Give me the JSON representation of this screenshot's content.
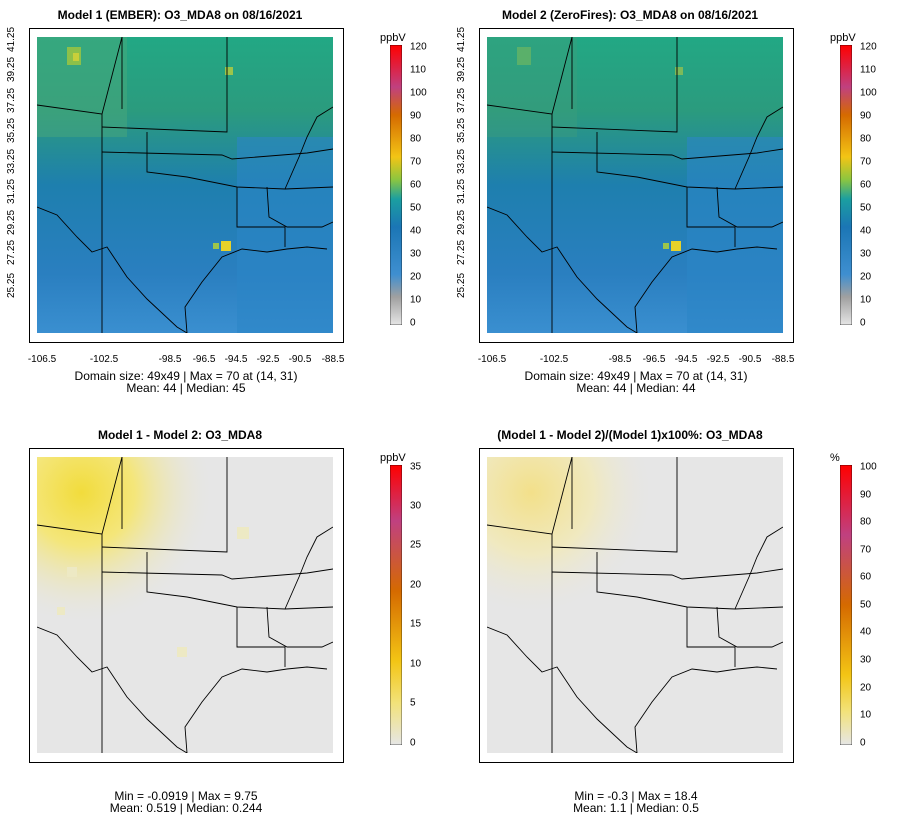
{
  "panels": [
    {
      "id": "p1",
      "title": "Model 1 (EMBER): O3_MDA8 on 08/16/2021",
      "caption_line1": "Domain size: 49x49 | Max = 70 at (14, 31)",
      "caption_line2": "Mean: 44 |  Median: 45",
      "unit": "ppbV",
      "colorbar_labels": [
        "120",
        "110",
        "100",
        "90",
        "80",
        "70",
        "60",
        "50",
        "40",
        "30",
        "20",
        "10",
        "0"
      ],
      "x_ticks": [
        "-106.5",
        "-102.5",
        "-98.5",
        "-96.5",
        "-94.5",
        "-92.5",
        "-90.5",
        "-88.5"
      ],
      "y_ticks": [
        "41.25",
        "39.25",
        "37.25",
        "35.25",
        "33.25",
        "31.25",
        "29.25",
        "27.25",
        "25.25"
      ]
    },
    {
      "id": "p2",
      "title": "Model 2 (ZeroFires): O3_MDA8 on 08/16/2021",
      "caption_line1": "Domain size: 49x49 | Max = 70 at (14, 31)",
      "caption_line2": "Mean: 44 |  Median: 44",
      "unit": "ppbV",
      "colorbar_labels": [
        "120",
        "110",
        "100",
        "90",
        "80",
        "70",
        "60",
        "50",
        "40",
        "30",
        "20",
        "10",
        "0"
      ],
      "x_ticks": [
        "-106.5",
        "-102.5",
        "-98.5",
        "-96.5",
        "-94.5",
        "-92.5",
        "-90.5",
        "-88.5"
      ],
      "y_ticks": [
        "41.25",
        "39.25",
        "37.25",
        "35.25",
        "33.25",
        "31.25",
        "29.25",
        "27.25",
        "25.25"
      ]
    },
    {
      "id": "p3",
      "title": "Model 1 - Model 2: O3_MDA8",
      "caption_line1": "Min = -0.0919 | Max = 9.75",
      "caption_line2": "Mean: 0.519 |  Median: 0.244",
      "unit": "ppbV",
      "colorbar_labels": [
        "35",
        "30",
        "25",
        "20",
        "15",
        "10",
        "5",
        "0"
      ]
    },
    {
      "id": "p4",
      "title": "(Model 1 - Model 2)/(Model 1)x100%: O3_MDA8",
      "caption_line1": "Min = -0.3 | Max = 18.4",
      "caption_line2": "Mean: 1.1 |  Median: 0.5",
      "unit": "%",
      "colorbar_labels": [
        "100",
        "90",
        "80",
        "70",
        "60",
        "50",
        "40",
        "30",
        "20",
        "10",
        "0"
      ]
    }
  ]
}
